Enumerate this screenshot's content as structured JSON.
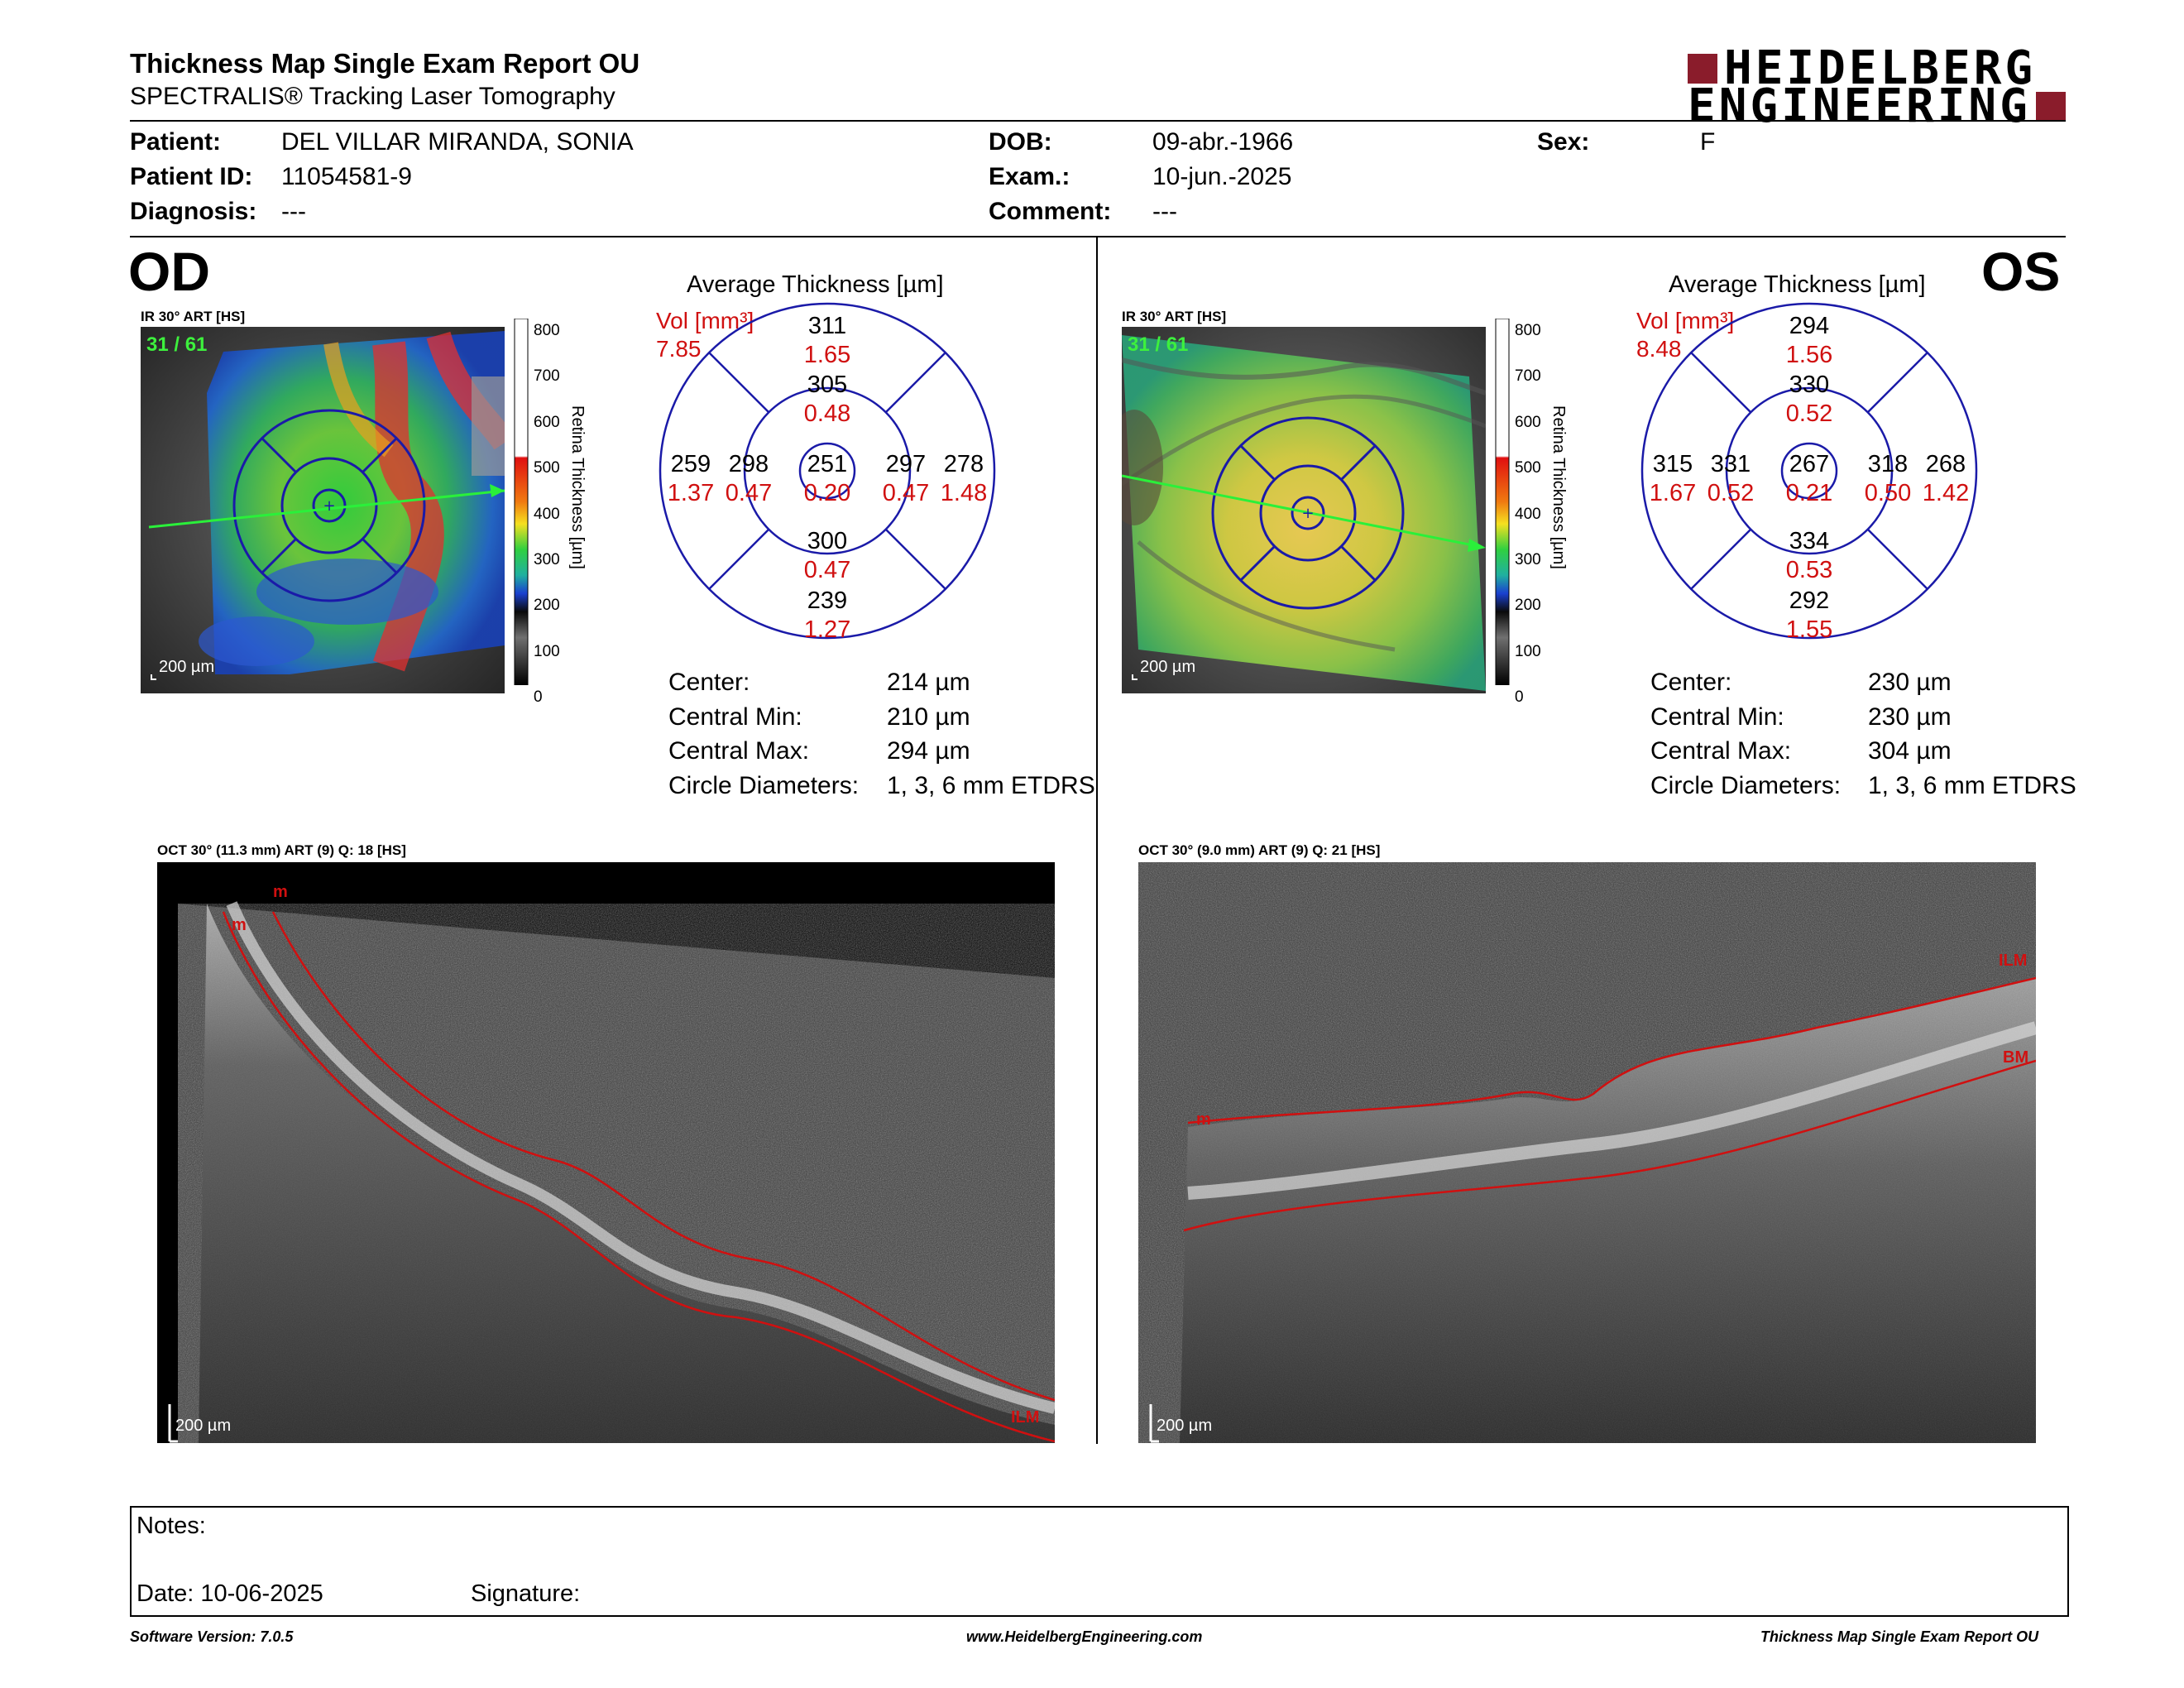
{
  "header": {
    "title": "Thickness Map Single Exam Report OU",
    "subtitle": "SPECTRALIS® Tracking Laser Tomography",
    "logo_top": "HEIDELBERG",
    "logo_bottom": "ENGINEERING"
  },
  "patient": {
    "patient_label": "Patient:",
    "patient_value": "DEL VILLAR MIRANDA, SONIA",
    "id_label": "Patient ID:",
    "id_value": "11054581-9",
    "diag_label": "Diagnosis:",
    "diag_value": "---",
    "dob_label": "DOB:",
    "dob_value": "09-abr.-1966",
    "exam_label": "Exam.:",
    "exam_value": "10-jun.-2025",
    "comment_label": "Comment:",
    "comment_value": "---",
    "sex_label": "Sex:",
    "sex_value": "F"
  },
  "od": {
    "eye": "OD",
    "ir_label": "IR 30° ART [HS]",
    "frame": "31 / 61",
    "scale": "200 µm",
    "colorbar_ticks": [
      "800",
      "700",
      "600",
      "500",
      "400",
      "300",
      "200",
      "100",
      "0"
    ],
    "colorbar_label": "Retina Thickness [µm]",
    "avg_title": "Average Thickness [µm]",
    "vol_label": "Vol [mm³]",
    "vol_value": "7.85",
    "grid": {
      "outer_sup": "311",
      "outer_sup_v": "1.65",
      "inner_sup": "305",
      "inner_sup_v": "0.48",
      "outer_temp": "259",
      "outer_temp_v": "1.37",
      "inner_temp": "298",
      "inner_temp_v": "0.47",
      "center": "251",
      "center_v": "0.20",
      "inner_nas": "297",
      "inner_nas_v": "0.47",
      "outer_nas": "278",
      "outer_nas_v": "1.48",
      "inner_inf": "300",
      "inner_inf_v": "0.47",
      "outer_inf": "239",
      "outer_inf_v": "1.27"
    },
    "stats": [
      {
        "label": "Center:",
        "value": "214 µm"
      },
      {
        "label": "Central Min:",
        "value": "210 µm"
      },
      {
        "label": "Central Max:",
        "value": "294 µm"
      },
      {
        "label": "Circle Diameters:",
        "value": "1, 3, 6 mm ETDRS"
      }
    ],
    "oct_label": "OCT 30° (11.3 mm) ART (9) Q: 18 [HS]",
    "oct_scale": "200 µm",
    "oct_tag_a": "m",
    "oct_tag_b": "m",
    "oct_tag_ilm": "ILM"
  },
  "os": {
    "eye": "OS",
    "ir_label": "IR 30° ART [HS]",
    "frame": "31 / 61",
    "scale": "200 µm",
    "colorbar_ticks": [
      "800",
      "700",
      "600",
      "500",
      "400",
      "300",
      "200",
      "100",
      "0"
    ],
    "colorbar_label": "Retina Thickness [µm]",
    "avg_title": "Average Thickness [µm]",
    "vol_label": "Vol [mm³]",
    "vol_value": "8.48",
    "grid": {
      "outer_sup": "294",
      "outer_sup_v": "1.56",
      "inner_sup": "330",
      "inner_sup_v": "0.52",
      "outer_temp": "315",
      "outer_temp_v": "1.67",
      "inner_temp": "331",
      "inner_temp_v": "0.52",
      "center": "267",
      "center_v": "0.21",
      "inner_nas": "318",
      "inner_nas_v": "0.50",
      "outer_nas": "268",
      "outer_nas_v": "1.42",
      "inner_inf": "334",
      "inner_inf_v": "0.53",
      "outer_inf": "292",
      "outer_inf_v": "1.55"
    },
    "stats": [
      {
        "label": "Center:",
        "value": "230 µm"
      },
      {
        "label": "Central Min:",
        "value": "230 µm"
      },
      {
        "label": "Central Max:",
        "value": "304 µm"
      },
      {
        "label": "Circle Diameters:",
        "value": "1, 3, 6 mm ETDRS"
      }
    ],
    "oct_label": "OCT 30° (9.0 mm) ART (9) Q: 21 [HS]",
    "oct_scale": "200 µm",
    "oct_tag_m": "m",
    "oct_tag_ilm": "ILM",
    "oct_tag_bm": "BM"
  },
  "notes": {
    "notes_label": "Notes:",
    "date_label": "Date: 10-06-2025",
    "signature_label": "Signature:"
  },
  "footer": {
    "version": "Software Version: 7.0.5",
    "url": "www.HeidelbergEngineering.com",
    "report": "Thickness Map Single Exam Report OU"
  },
  "colors": {
    "accent": "#8a1c2b",
    "grid_blue": "#1a1aa8",
    "value_red": "#d01010"
  }
}
